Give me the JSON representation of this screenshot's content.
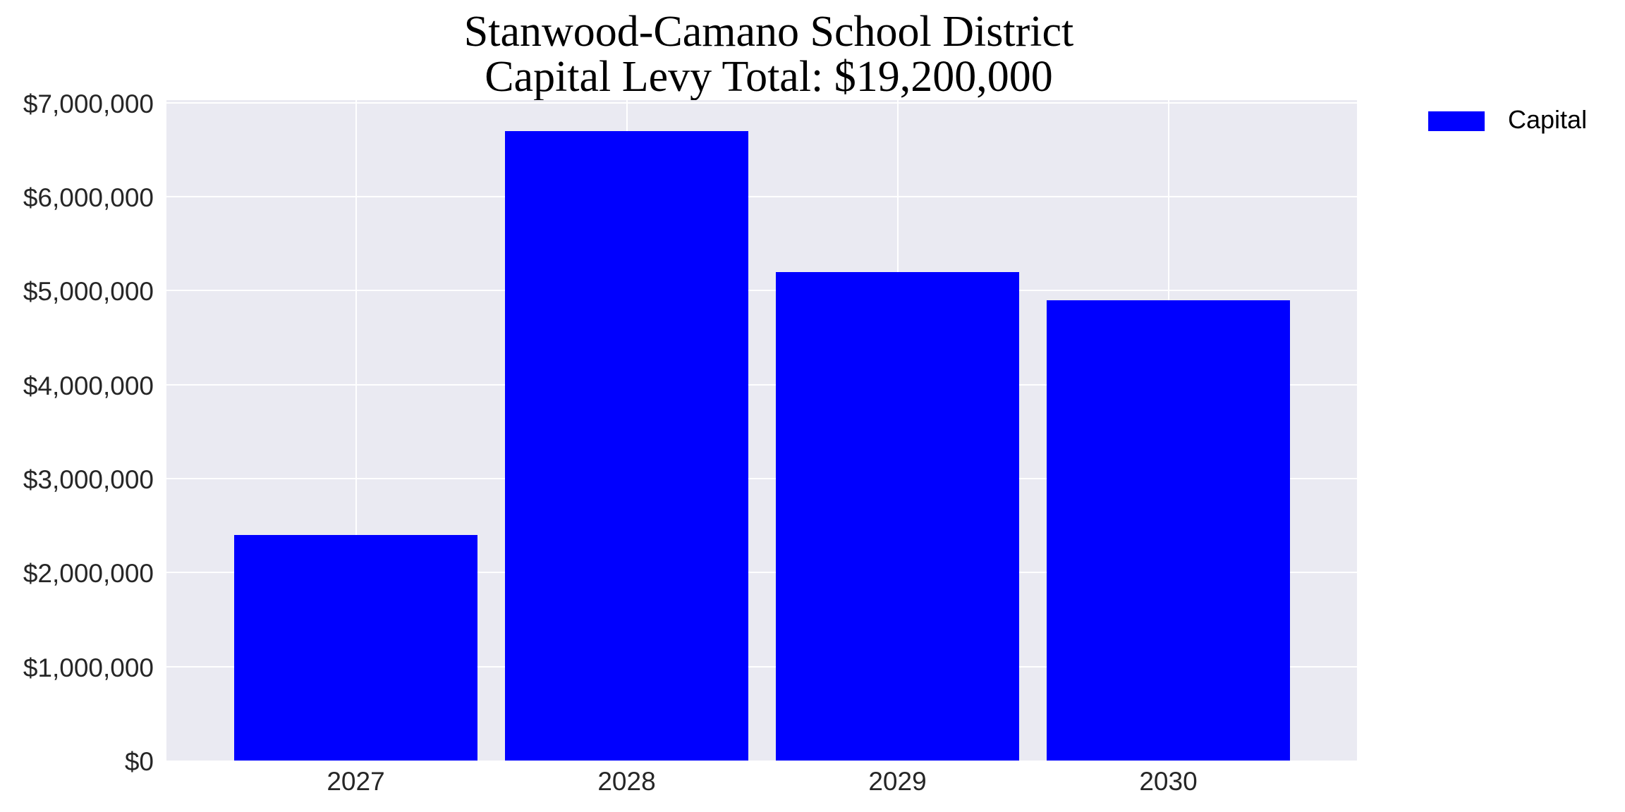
{
  "title": {
    "line1": "Stanwood-Camano School District",
    "line2": "Capital Levy Total: $19,200,000"
  },
  "colors": {
    "bar": "#0000FF",
    "plot_background": "#EAEAF2",
    "grid": "#FFFFFF"
  },
  "y_ticks": [
    "$0",
    "$1,000,000",
    "$2,000,000",
    "$3,000,000",
    "$4,000,000",
    "$5,000,000",
    "$6,000,000",
    "$7,000,000"
  ],
  "x_ticks": [
    "2027",
    "2028",
    "2029",
    "2030"
  ],
  "legend": {
    "items": [
      {
        "label": "Capital",
        "color": "#0000FF"
      }
    ]
  },
  "chart_data": {
    "type": "bar",
    "title": "Stanwood-Camano School District\nCapital Levy Total: $19,200,000",
    "categories": [
      "2027",
      "2028",
      "2029",
      "2030"
    ],
    "series": [
      {
        "name": "Capital",
        "color": "#0000FF",
        "values": [
          2400000,
          6700000,
          5200000,
          4900000
        ]
      }
    ],
    "xlabel": "",
    "ylabel": "",
    "ylim": [
      0,
      7000000
    ],
    "yticks": [
      0,
      1000000,
      2000000,
      3000000,
      4000000,
      5000000,
      6000000,
      7000000
    ],
    "grid": true,
    "legend_position": "upper right, outside plot"
  }
}
